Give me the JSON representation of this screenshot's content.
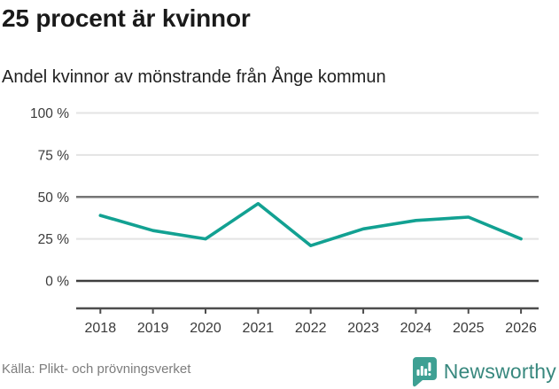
{
  "header": {
    "title": "25 procent är kvinnor",
    "subtitle": "Andel kvinnor av mönstrande från Ånge kommun"
  },
  "chart_data": {
    "type": "line",
    "title": "25 procent är kvinnor",
    "subtitle": "Andel kvinnor av mönstrande från Ånge kommun",
    "x": [
      2018,
      2019,
      2020,
      2021,
      2022,
      2023,
      2024,
      2025,
      2026
    ],
    "series": [
      {
        "name": "Andel kvinnor av mönstrande",
        "values": [
          39,
          30,
          25,
          46,
          21,
          31,
          36,
          38,
          25
        ]
      }
    ],
    "ylim": [
      0,
      100
    ],
    "yticks": [
      0,
      25,
      50,
      75,
      100
    ],
    "ytick_suffix": " %",
    "grid": "horizontal",
    "legend": "none",
    "line_color": "#12a192",
    "gridline_color": "#e3e3e3",
    "emphasized_gridlines": {
      "0": "#3f3f3f",
      "50": "#757575"
    },
    "axis_color": "#4d4d4d",
    "tick_label_color": "#3a3a3a"
  },
  "footer": {
    "source": "Källa: Plikt- och prövningsverket",
    "brand": "Newsworthy",
    "brand_color": "#38887e",
    "logo_color": "#3ea093"
  }
}
